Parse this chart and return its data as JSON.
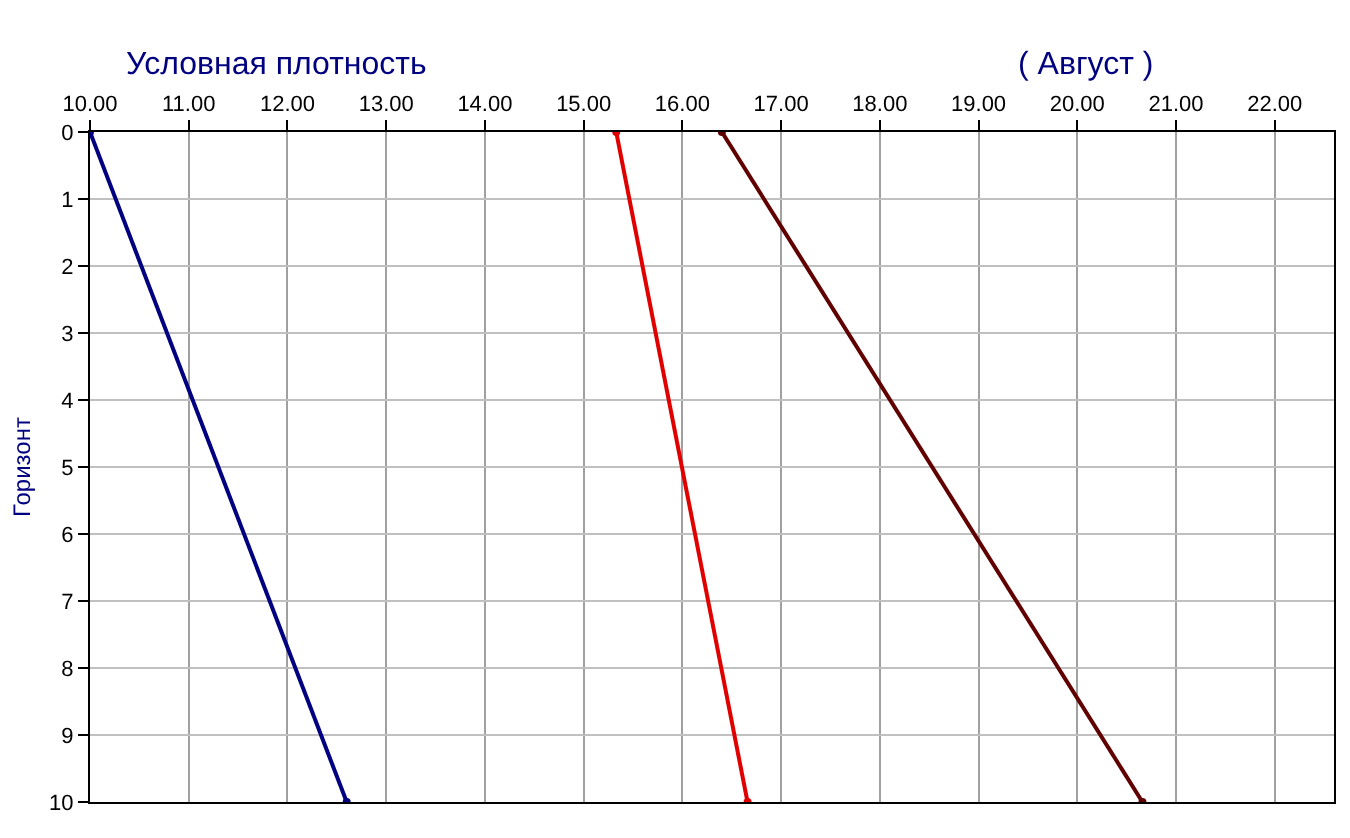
{
  "chart_data": {
    "type": "line",
    "title": "Условная плотность",
    "subtitle": "( Август )",
    "ylabel": "Горизонт",
    "series": [
      {
        "color": "#000080",
        "x": [
          10.0,
          12.6
        ],
        "values": [
          0,
          10
        ]
      },
      {
        "color": "#e00000",
        "x": [
          15.33,
          16.66
        ],
        "values": [
          0,
          10
        ]
      },
      {
        "color": "#600000",
        "x": [
          16.4,
          20.66
        ],
        "values": [
          0,
          10
        ]
      }
    ],
    "xlim": [
      10.0,
      22.6
    ],
    "xticks": [
      {
        "value": 10,
        "label": "10.00"
      },
      {
        "value": 11,
        "label": "11.00"
      },
      {
        "value": 12,
        "label": "12.00"
      },
      {
        "value": 13,
        "label": "13.00"
      },
      {
        "value": 14,
        "label": "14.00"
      },
      {
        "value": 15,
        "label": "15.00"
      },
      {
        "value": 16,
        "label": "16.00"
      },
      {
        "value": 17,
        "label": "17.00"
      },
      {
        "value": 18,
        "label": "18.00"
      },
      {
        "value": 19,
        "label": "19.00"
      },
      {
        "value": 20,
        "label": "20.00"
      },
      {
        "value": 21,
        "label": "21.00"
      },
      {
        "value": 22,
        "label": "22.00"
      }
    ],
    "ylim": [
      10,
      0
    ],
    "yticks": [
      0,
      1,
      2,
      3,
      4,
      5,
      6,
      7,
      8,
      9,
      10
    ],
    "grid": true,
    "marker": "circle",
    "line_style": "solid"
  }
}
